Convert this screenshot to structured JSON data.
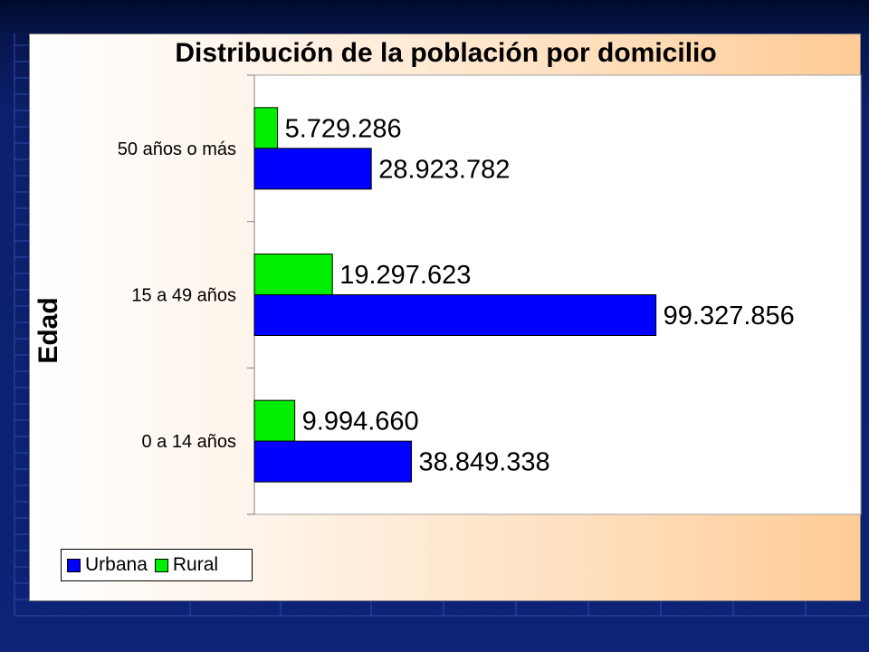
{
  "chart_data": {
    "type": "bar",
    "orientation": "horizontal",
    "title": "Distribución de la población por domicilio",
    "ylabel": "Edad",
    "xlabel": "",
    "categories": [
      "50 años o más",
      "15 a 49 años",
      "0 a 14 años"
    ],
    "series": [
      {
        "name": "Rural",
        "color": "#00ee00",
        "values": [
          5729286,
          19297623,
          9994660
        ],
        "labels": [
          "5.729.286",
          "19.297.623",
          "9.994.660"
        ]
      },
      {
        "name": "Urbana",
        "color": "#0000ff",
        "values": [
          28923782,
          99327856,
          38849338
        ],
        "labels": [
          "28.923.782",
          "99.327.856",
          "38.849.338"
        ]
      }
    ],
    "xlim": [
      0,
      150000000
    ],
    "grid": false,
    "legend_position": "bottom-left"
  },
  "legend": {
    "urbana_label": "Urbana",
    "rural_label": "Rural"
  },
  "colors": {
    "urbana": "#0000ff",
    "rural": "#00ee00"
  }
}
